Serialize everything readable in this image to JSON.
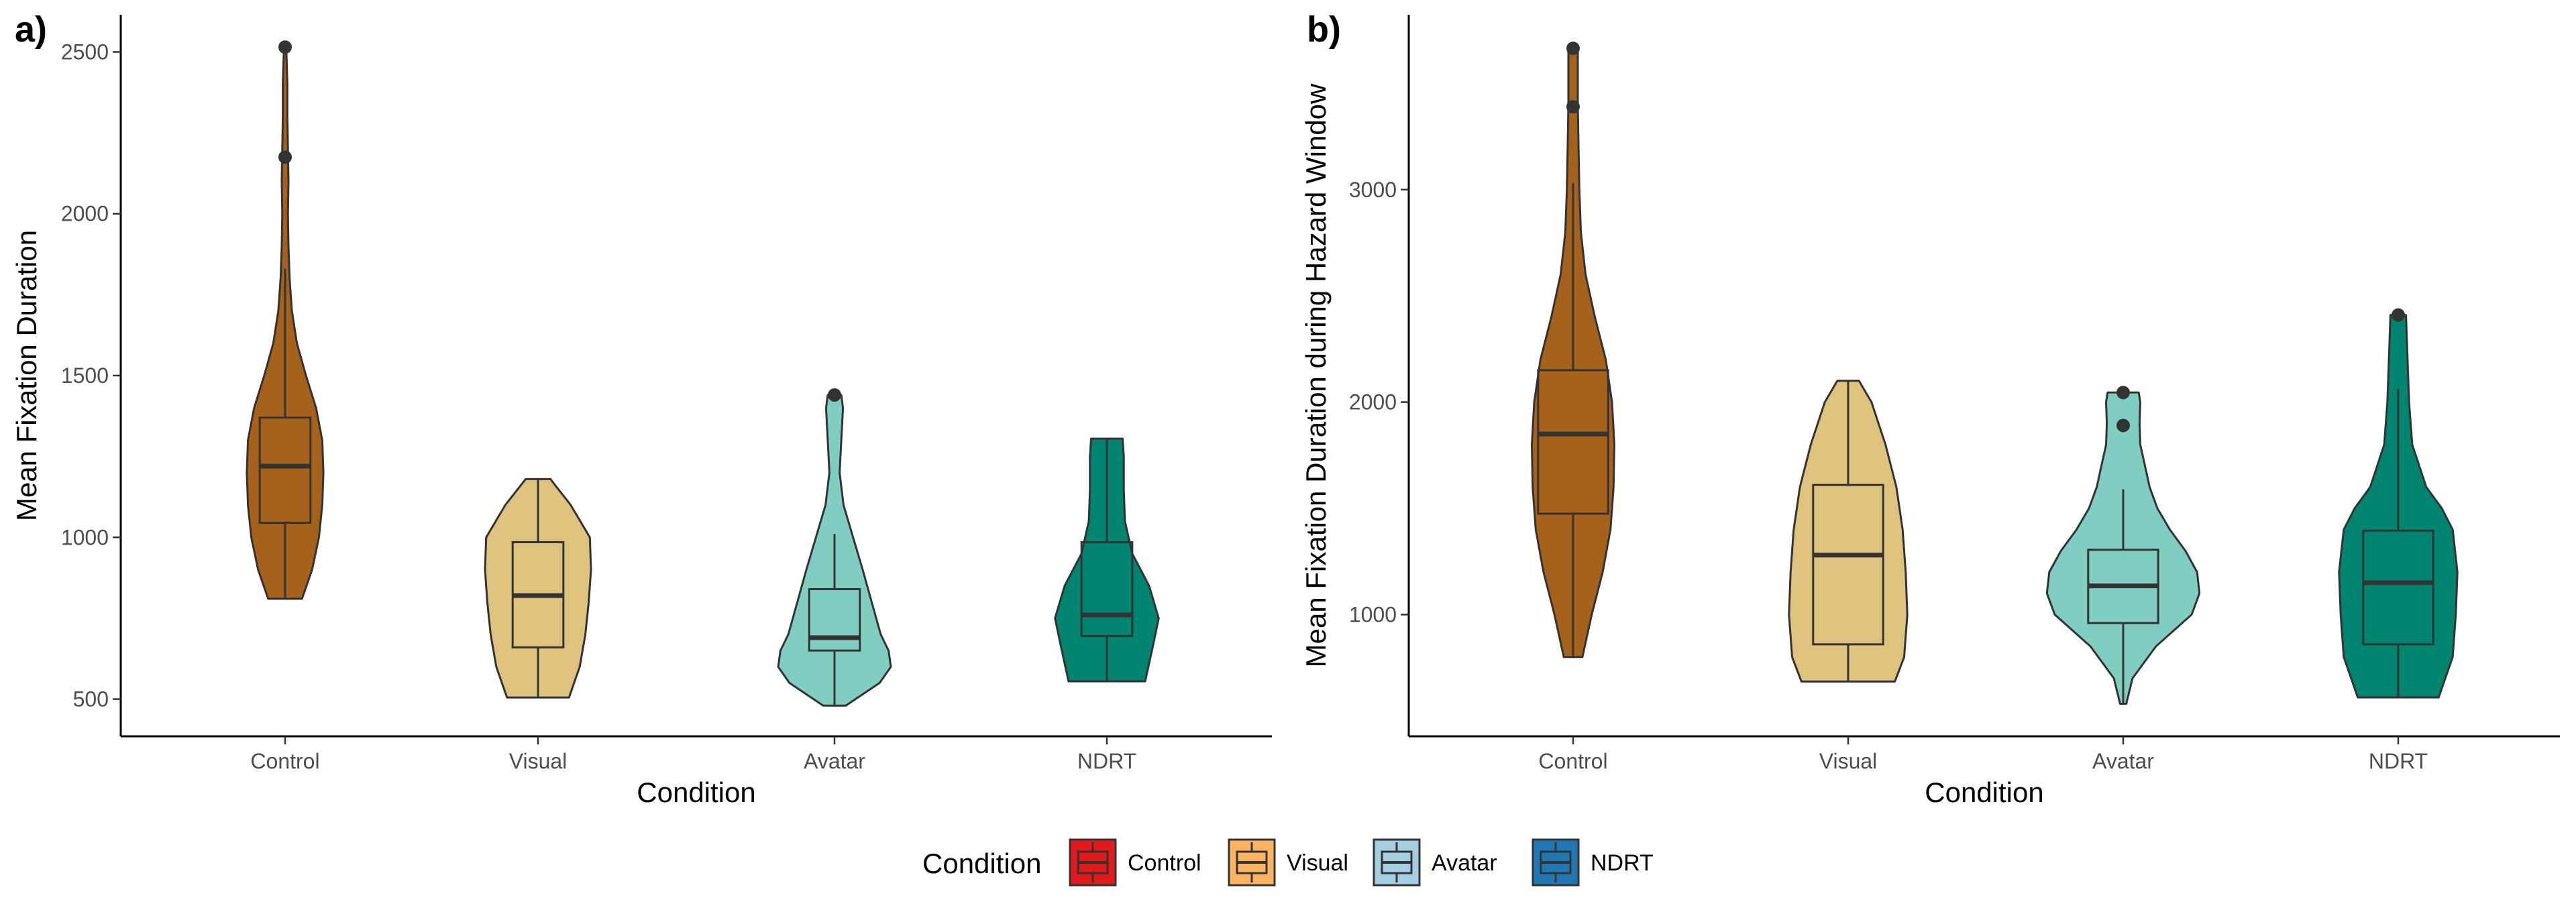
{
  "colors": {
    "control_fill": "#A6611A",
    "visual_fill": "#DFC27D",
    "avatar_fill": "#80CDC1",
    "ndrt_fill": "#018571",
    "legend_control": "#E31A1C",
    "legend_visual": "#FDB462",
    "legend_avatar": "#A6CEE3",
    "legend_ndrt": "#1F78B4",
    "outline": "#333333"
  },
  "legend": {
    "title": "Condition",
    "items": [
      {
        "label": "Control",
        "color": "#E31A1C"
      },
      {
        "label": "Visual",
        "color": "#FDB462"
      },
      {
        "label": "Avatar",
        "color": "#A6CEE3"
      },
      {
        "label": "NDRT",
        "color": "#1F78B4"
      }
    ]
  },
  "chart_data": [
    {
      "type": "violin",
      "panel_label": "a)",
      "title": "",
      "xlabel": "Condition",
      "ylabel": "Mean Fixation Duration",
      "categories": [
        "Control",
        "Visual",
        "Avatar",
        "NDRT"
      ],
      "ylim": [
        385,
        2615
      ],
      "yticks": [
        500,
        1000,
        1500,
        2000,
        2500
      ],
      "grid": false,
      "groups": [
        {
          "name": "Control",
          "min": 810,
          "q1": 1045,
          "median": 1220,
          "q3": 1370,
          "whisker_low": 810,
          "whisker_high": 1830,
          "max": 2515,
          "outliers": [
            2515,
            2175
          ],
          "density": [
            [
              810,
              0.3
            ],
            [
              900,
              0.48
            ],
            [
              1000,
              0.6
            ],
            [
              1100,
              0.66
            ],
            [
              1200,
              0.68
            ],
            [
              1300,
              0.66
            ],
            [
              1400,
              0.55
            ],
            [
              1500,
              0.37
            ],
            [
              1600,
              0.21
            ],
            [
              1700,
              0.12
            ],
            [
              1800,
              0.08
            ],
            [
              1900,
              0.06
            ],
            [
              2000,
              0.05
            ],
            [
              2100,
              0.06
            ],
            [
              2200,
              0.05
            ],
            [
              2300,
              0.04
            ],
            [
              2400,
              0.04
            ],
            [
              2515,
              0.02
            ]
          ]
        },
        {
          "name": "Visual",
          "min": 505,
          "q1": 660,
          "median": 820,
          "q3": 985,
          "whisker_low": 505,
          "whisker_high": 1180,
          "max": 1180,
          "outliers": [],
          "density": [
            [
              505,
              0.55
            ],
            [
              600,
              0.74
            ],
            [
              700,
              0.84
            ],
            [
              800,
              0.9
            ],
            [
              900,
              0.94
            ],
            [
              1000,
              0.92
            ],
            [
              1100,
              0.58
            ],
            [
              1180,
              0.22
            ]
          ]
        },
        {
          "name": "Avatar",
          "min": 480,
          "q1": 650,
          "median": 690,
          "q3": 840,
          "whisker_low": 480,
          "whisker_high": 1010,
          "max": 1440,
          "outliers": [
            1440
          ],
          "density": [
            [
              480,
              0.2
            ],
            [
              550,
              0.8
            ],
            [
              600,
              1.0
            ],
            [
              650,
              0.96
            ],
            [
              700,
              0.82
            ],
            [
              800,
              0.66
            ],
            [
              900,
              0.5
            ],
            [
              1000,
              0.33
            ],
            [
              1100,
              0.16
            ],
            [
              1200,
              0.09
            ],
            [
              1300,
              0.12
            ],
            [
              1400,
              0.15
            ],
            [
              1440,
              0.12
            ]
          ]
        },
        {
          "name": "NDRT",
          "min": 555,
          "q1": 695,
          "median": 760,
          "q3": 985,
          "whisker_low": 555,
          "whisker_high": 1305,
          "max": 1305,
          "outliers": [],
          "density": [
            [
              555,
              0.68
            ],
            [
              650,
              0.8
            ],
            [
              750,
              0.92
            ],
            [
              850,
              0.75
            ],
            [
              950,
              0.45
            ],
            [
              1050,
              0.32
            ],
            [
              1150,
              0.3
            ],
            [
              1250,
              0.3
            ],
            [
              1305,
              0.28
            ]
          ]
        }
      ]
    },
    {
      "type": "violin",
      "panel_label": "b)",
      "title": "",
      "xlabel": "Condition",
      "ylabel": "Mean Fixation Duration during Hazard Window",
      "categories": [
        "Control",
        "Visual",
        "Avatar",
        "NDRT"
      ],
      "ylim": [
        427,
        3823
      ],
      "yticks": [
        1000,
        2000,
        3000
      ],
      "grid": false,
      "groups": [
        {
          "name": "Control",
          "min": 800,
          "q1": 1475,
          "median": 1850,
          "q3": 2150,
          "whisker_low": 800,
          "whisker_high": 3030,
          "max": 3665,
          "outliers": [
            3665,
            3390
          ],
          "density": [
            [
              800,
              0.12
            ],
            [
              1000,
              0.24
            ],
            [
              1200,
              0.38
            ],
            [
              1400,
              0.48
            ],
            [
              1600,
              0.52
            ],
            [
              1800,
              0.53
            ],
            [
              2000,
              0.5
            ],
            [
              2200,
              0.42
            ],
            [
              2400,
              0.28
            ],
            [
              2600,
              0.16
            ],
            [
              2800,
              0.1
            ],
            [
              3000,
              0.08
            ],
            [
              3200,
              0.07
            ],
            [
              3400,
              0.06
            ],
            [
              3665,
              0.06
            ]
          ]
        },
        {
          "name": "Visual",
          "min": 685,
          "q1": 860,
          "median": 1280,
          "q3": 1610,
          "whisker_low": 685,
          "whisker_high": 2100,
          "max": 2100,
          "outliers": [],
          "density": [
            [
              685,
              0.6
            ],
            [
              800,
              0.72
            ],
            [
              1000,
              0.76
            ],
            [
              1200,
              0.74
            ],
            [
              1400,
              0.7
            ],
            [
              1600,
              0.62
            ],
            [
              1800,
              0.48
            ],
            [
              2000,
              0.3
            ],
            [
              2100,
              0.14
            ]
          ]
        },
        {
          "name": "Avatar",
          "min": 580,
          "q1": 960,
          "median": 1135,
          "q3": 1305,
          "whisker_low": 580,
          "whisker_high": 1590,
          "max": 2045,
          "outliers": [
            2045,
            1890
          ],
          "density": [
            [
              580,
              0.04
            ],
            [
              700,
              0.12
            ],
            [
              850,
              0.42
            ],
            [
              1000,
              0.88
            ],
            [
              1100,
              0.98
            ],
            [
              1200,
              0.95
            ],
            [
              1300,
              0.8
            ],
            [
              1400,
              0.6
            ],
            [
              1500,
              0.44
            ],
            [
              1600,
              0.34
            ],
            [
              1700,
              0.28
            ],
            [
              1800,
              0.22
            ],
            [
              1900,
              0.21
            ],
            [
              2000,
              0.22
            ],
            [
              2045,
              0.2
            ]
          ]
        },
        {
          "name": "NDRT",
          "min": 610,
          "q1": 860,
          "median": 1150,
          "q3": 1395,
          "whisker_low": 610,
          "whisker_high": 2060,
          "max": 2410,
          "outliers": [
            2410
          ],
          "density": [
            [
              610,
              0.52
            ],
            [
              800,
              0.7
            ],
            [
              1000,
              0.74
            ],
            [
              1200,
              0.76
            ],
            [
              1400,
              0.7
            ],
            [
              1500,
              0.56
            ],
            [
              1600,
              0.36
            ],
            [
              1800,
              0.18
            ],
            [
              2000,
              0.14
            ],
            [
              2200,
              0.12
            ],
            [
              2410,
              0.1
            ]
          ]
        }
      ]
    }
  ]
}
